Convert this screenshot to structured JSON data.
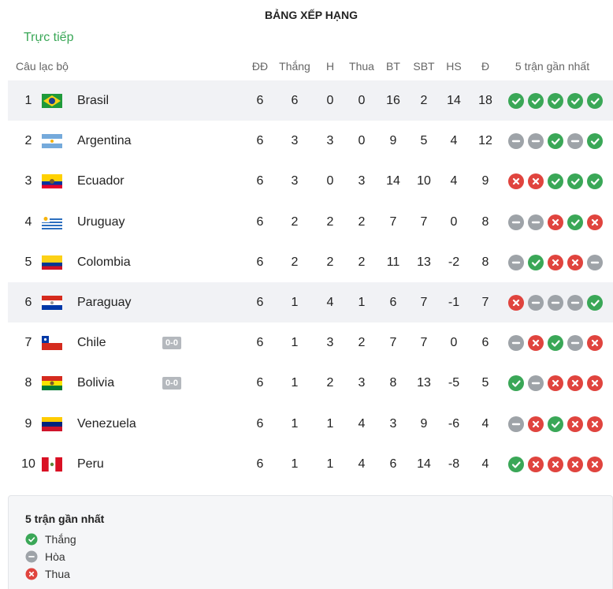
{
  "header": {
    "title": "BẢNG XẾP HẠNG",
    "tab": "Trực tiếp"
  },
  "table": {
    "columns": [
      "Câu lạc bộ",
      "ĐĐ",
      "Thắng",
      "H",
      "Thua",
      "BT",
      "SBT",
      "HS",
      "Đ",
      "5 trận gần nhất"
    ],
    "rows": [
      {
        "rank": 1,
        "team": "Brasil",
        "live": null,
        "played": 6,
        "won": 6,
        "drawn": 0,
        "lost": 0,
        "gf": 16,
        "ga": 2,
        "gd": 14,
        "pts": 18,
        "form": [
          "Thắng",
          "Thắng",
          "Thắng",
          "Thắng",
          "Thắng"
        ]
      },
      {
        "rank": 2,
        "team": "Argentina",
        "live": null,
        "played": 6,
        "won": 3,
        "drawn": 3,
        "lost": 0,
        "gf": 9,
        "ga": 5,
        "gd": 4,
        "pts": 12,
        "form": [
          "Hòa",
          "Hòa",
          "Thắng",
          "Hòa",
          "Thắng"
        ]
      },
      {
        "rank": 3,
        "team": "Ecuador",
        "live": null,
        "played": 6,
        "won": 3,
        "drawn": 0,
        "lost": 3,
        "gf": 14,
        "ga": 10,
        "gd": 4,
        "pts": 9,
        "form": [
          "Thua",
          "Thua",
          "Thắng",
          "Thắng",
          "Thắng"
        ]
      },
      {
        "rank": 4,
        "team": "Uruguay",
        "live": null,
        "played": 6,
        "won": 2,
        "drawn": 2,
        "lost": 2,
        "gf": 7,
        "ga": 7,
        "gd": 0,
        "pts": 8,
        "form": [
          "Hòa",
          "Hòa",
          "Thua",
          "Thắng",
          "Thua"
        ]
      },
      {
        "rank": 5,
        "team": "Colombia",
        "live": null,
        "played": 6,
        "won": 2,
        "drawn": 2,
        "lost": 2,
        "gf": 11,
        "ga": 13,
        "gd": -2,
        "pts": 8,
        "form": [
          "Hòa",
          "Thắng",
          "Thua",
          "Thua",
          "Hòa"
        ]
      },
      {
        "rank": 6,
        "team": "Paraguay",
        "live": null,
        "played": 6,
        "won": 1,
        "drawn": 4,
        "lost": 1,
        "gf": 6,
        "ga": 7,
        "gd": -1,
        "pts": 7,
        "form": [
          "Thua",
          "Hòa",
          "Hòa",
          "Hòa",
          "Thắng"
        ]
      },
      {
        "rank": 7,
        "team": "Chile",
        "live": "0-0",
        "played": 6,
        "won": 1,
        "drawn": 3,
        "lost": 2,
        "gf": 7,
        "ga": 7,
        "gd": 0,
        "pts": 6,
        "form": [
          "Hòa",
          "Thua",
          "Thắng",
          "Hòa",
          "Thua"
        ]
      },
      {
        "rank": 8,
        "team": "Bolivia",
        "live": "0-0",
        "played": 6,
        "won": 1,
        "drawn": 2,
        "lost": 3,
        "gf": 8,
        "ga": 13,
        "gd": -5,
        "pts": 5,
        "form": [
          "Thắng",
          "Hòa",
          "Thua",
          "Thua",
          "Thua"
        ]
      },
      {
        "rank": 9,
        "team": "Venezuela",
        "live": null,
        "played": 6,
        "won": 1,
        "drawn": 1,
        "lost": 4,
        "gf": 3,
        "ga": 9,
        "gd": -6,
        "pts": 4,
        "form": [
          "Hòa",
          "Thua",
          "Thắng",
          "Thua",
          "Thua"
        ]
      },
      {
        "rank": 10,
        "team": "Peru",
        "live": null,
        "played": 6,
        "won": 1,
        "drawn": 1,
        "lost": 4,
        "gf": 6,
        "ga": 14,
        "gd": -8,
        "pts": 4,
        "form": [
          "Thắng",
          "Thua",
          "Thua",
          "Thua",
          "Thua"
        ]
      }
    ]
  },
  "legend": {
    "title": "5 trận gần nhất",
    "items": [
      "Thắng",
      "Hòa",
      "Thua"
    ]
  }
}
